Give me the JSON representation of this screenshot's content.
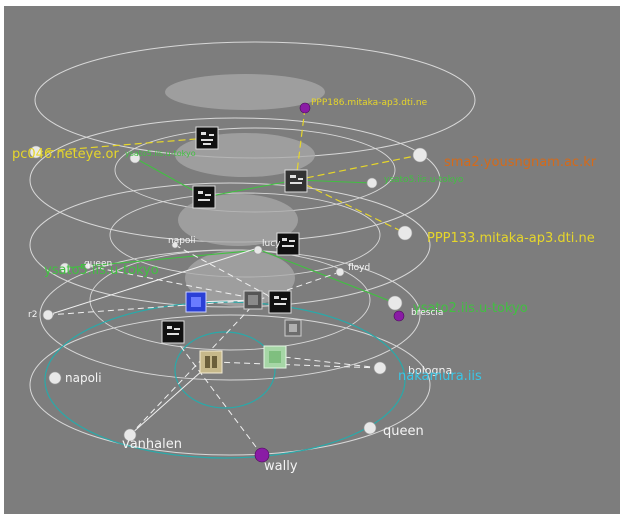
{
  "labels": {
    "pc046": "pc046.neteye.or",
    "ysato5_top": "ysato5.iis.u-tokyo",
    "ppp186": "PPP186.mitaka-ap3.dti.ne",
    "sma": "sma2.yousngnam.ac.kr",
    "ysato5_mid": "ysato5.iis.u-tokyo",
    "ppp133": "PPP133.mitaka-ap3.dti.ne",
    "napoli_small": "napoli",
    "lucy": "lucy",
    "queen_small": "queen",
    "ysato5_green": "ysato5.iis.u-tokyo",
    "floyd": "floyd",
    "ysato2": "ysato2.iis.u-tokyo",
    "brescia": "brescia",
    "r2": "r2",
    "napoli": "napoli",
    "bologna": "bologna",
    "nakamura": "nakamura.iis",
    "vanhalen": "vanhalen",
    "queen": "queen",
    "wally": "wally"
  },
  "colors": {
    "background": "#7d7d7d",
    "ring": "#d8d8d8",
    "cyan": "#2aa9a9",
    "yellow": "#e6d62a",
    "green": "#41c041",
    "orange": "#d46a1a",
    "purple": "#8a1ca5",
    "label_light": "#f4f4f4",
    "label_cyan": "#39c6e6"
  },
  "icons": [
    "host-cube-icon",
    "blue-cube-icon",
    "tan-cube-icon",
    "green-cube-icon",
    "node-sphere-icon",
    "purple-node-icon"
  ]
}
